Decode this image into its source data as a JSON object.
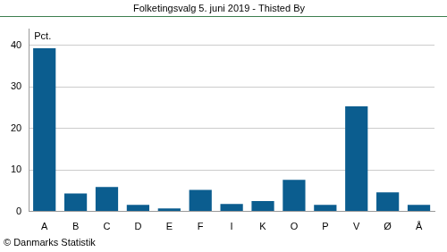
{
  "chart_data": {
    "type": "bar",
    "title": "Folketingsvalg 5. juni 2019 - Thisted By",
    "ylabel": "Pct.",
    "source": "© Danmarks Statistik",
    "categories": [
      "A",
      "B",
      "C",
      "D",
      "E",
      "F",
      "I",
      "K",
      "O",
      "P",
      "V",
      "Ø",
      "Å"
    ],
    "values": [
      39.3,
      4.3,
      5.9,
      1.6,
      0.7,
      5.2,
      1.8,
      2.5,
      7.6,
      1.6,
      25.3,
      4.6,
      1.6
    ],
    "color": "#0b5d8f",
    "ylim": [
      0,
      44
    ],
    "yticks": [
      0,
      10,
      20,
      30,
      40
    ],
    "grid": true
  }
}
